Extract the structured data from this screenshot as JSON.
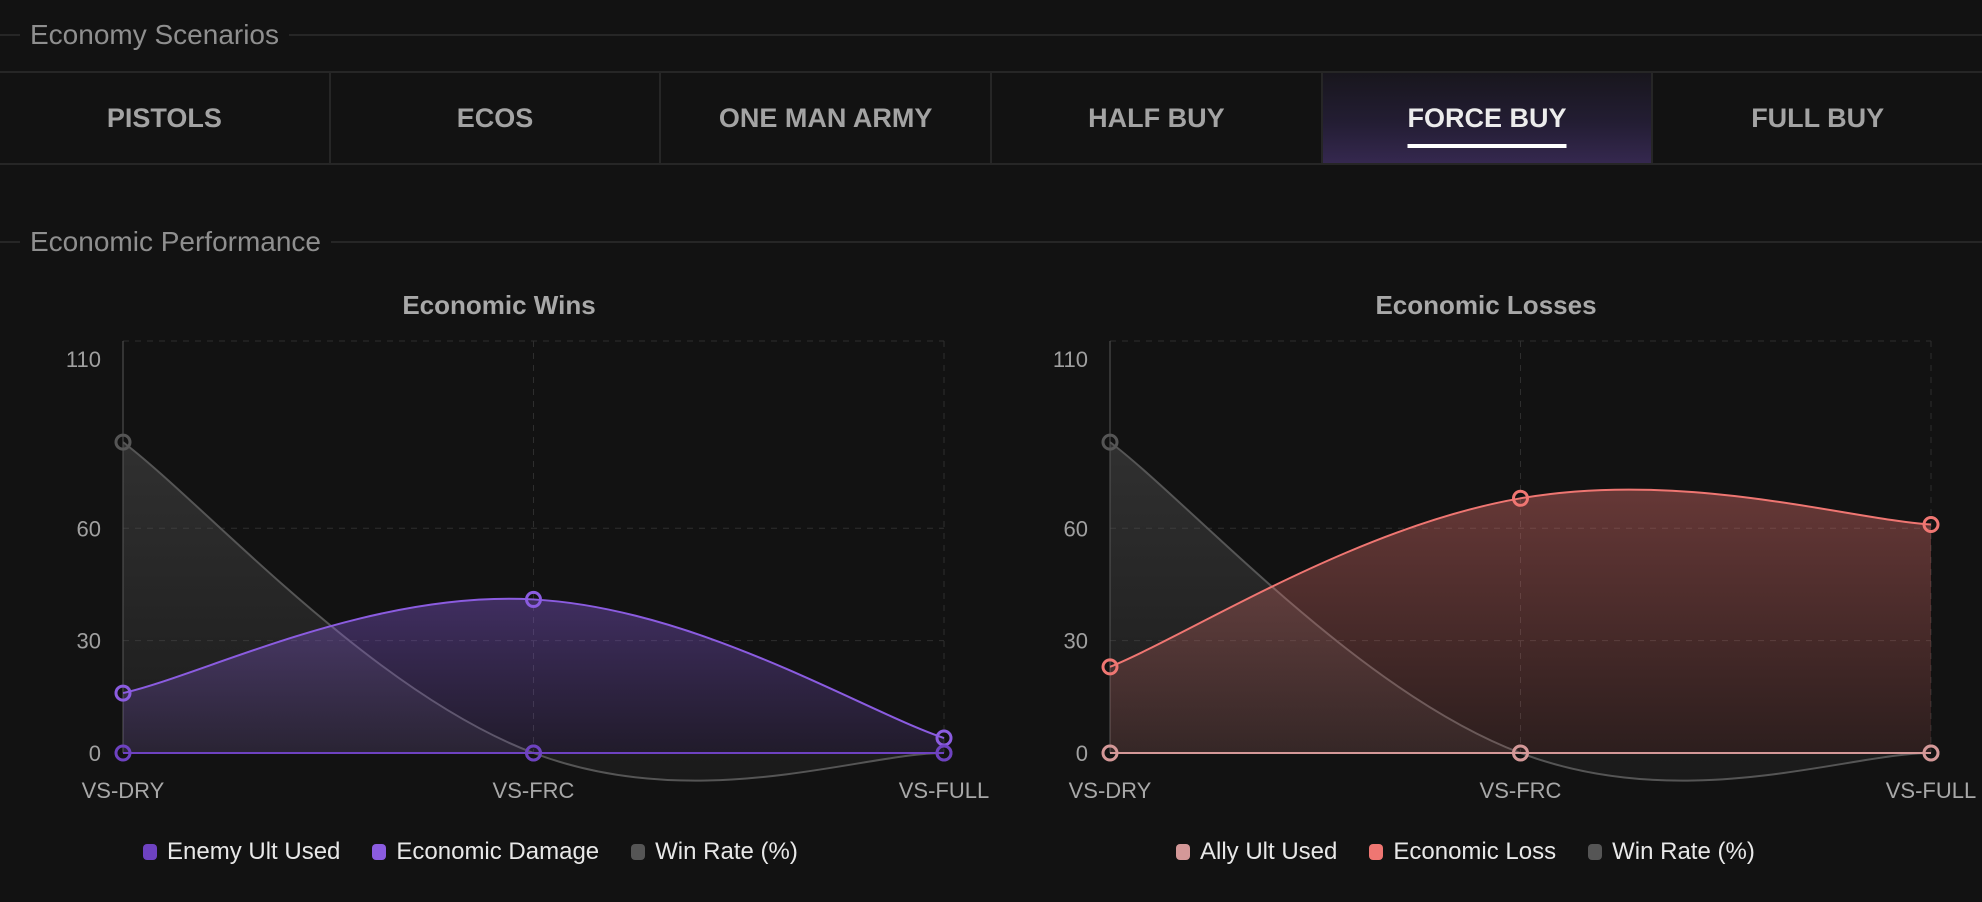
{
  "sections": {
    "scenarios": "Economy Scenarios",
    "performance": "Economic Performance"
  },
  "tabs": [
    {
      "label": "PISTOLS",
      "active": false
    },
    {
      "label": "ECOS",
      "active": false
    },
    {
      "label": "ONE MAN ARMY",
      "active": false
    },
    {
      "label": "HALF BUY",
      "active": false
    },
    {
      "label": "FORCE BUY",
      "active": true
    },
    {
      "label": "FULL BUY",
      "active": false
    }
  ],
  "chart_data": [
    {
      "type": "line",
      "title": "Economic Wins",
      "categories": [
        "VS-DRY",
        "VS-FRC",
        "VS-FULL"
      ],
      "ylim": [
        0,
        110
      ],
      "yticks": [
        "0",
        "30",
        "60",
        "110"
      ],
      "grid": true,
      "legend": "bottom",
      "series": [
        {
          "name": "Enemy Ult Used",
          "values": [
            0,
            0,
            0
          ],
          "color": "#6e42c1",
          "fill": false
        },
        {
          "name": "Economic Damage",
          "values": [
            16,
            41,
            4
          ],
          "color": "#8b5ce0",
          "fill": true
        },
        {
          "name": "Win Rate (%)",
          "values": [
            83,
            0,
            0
          ],
          "color": "#555555",
          "fill": true
        }
      ]
    },
    {
      "type": "line",
      "title": "Economic Losses",
      "categories": [
        "VS-DRY",
        "VS-FRC",
        "VS-FULL"
      ],
      "ylim": [
        0,
        110
      ],
      "yticks": [
        "0",
        "30",
        "60",
        "110"
      ],
      "grid": true,
      "legend": "bottom",
      "series": [
        {
          "name": "Ally Ult Used",
          "values": [
            0,
            0,
            0
          ],
          "color": "#d49898",
          "fill": false
        },
        {
          "name": "Economic Loss",
          "values": [
            23,
            68,
            61
          ],
          "color": "#ef7672",
          "fill": true
        },
        {
          "name": "Win Rate (%)",
          "values": [
            83,
            0,
            0
          ],
          "color": "#555555",
          "fill": true
        }
      ]
    }
  ]
}
